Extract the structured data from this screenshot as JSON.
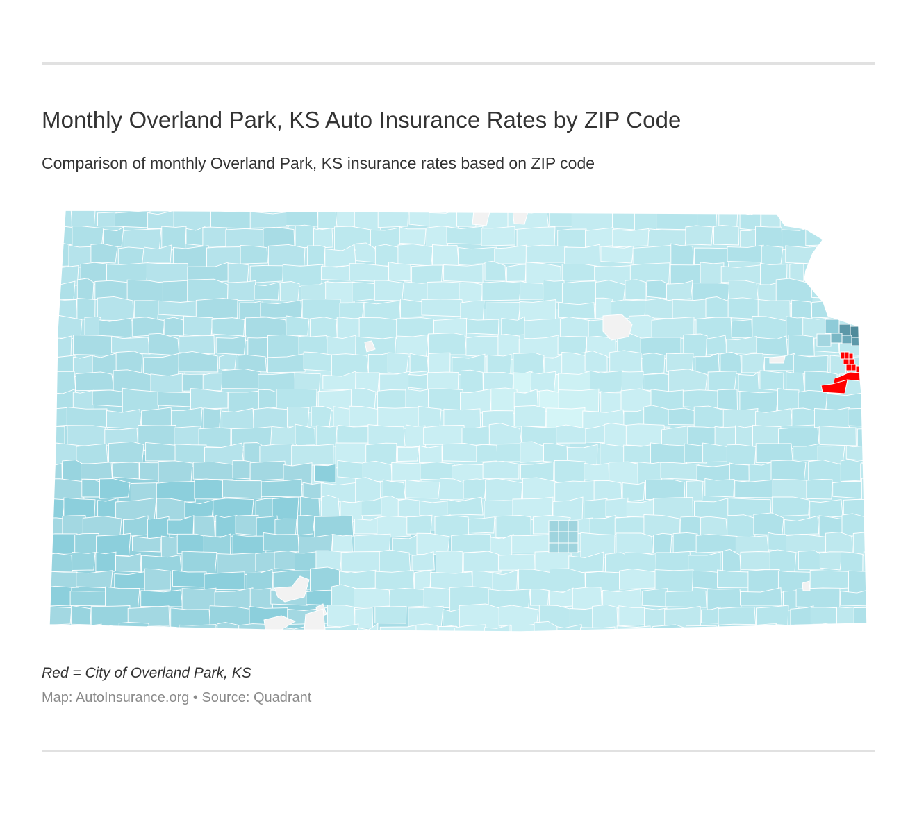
{
  "header": {
    "title": "Monthly Overland Park, KS Auto Insurance Rates by ZIP Code",
    "subtitle": "Comparison of monthly Overland Park, KS insurance rates based on ZIP code"
  },
  "map": {
    "region": "Kansas",
    "type": "choropleth",
    "unit": "ZIP code",
    "highlight_color": "#ff0000",
    "color_scale": [
      "#e0ffff",
      "#c6edf2",
      "#b4e4ec",
      "#a6dbe5",
      "#8fcfdc",
      "#5c98a8"
    ],
    "no_data_color": "#f2f2f2",
    "boundary_color": "#ffffff"
  },
  "footer": {
    "note": "Red = City of Overland Park, KS",
    "credit": "Map: AutoInsurance.org • Source: Quadrant"
  }
}
